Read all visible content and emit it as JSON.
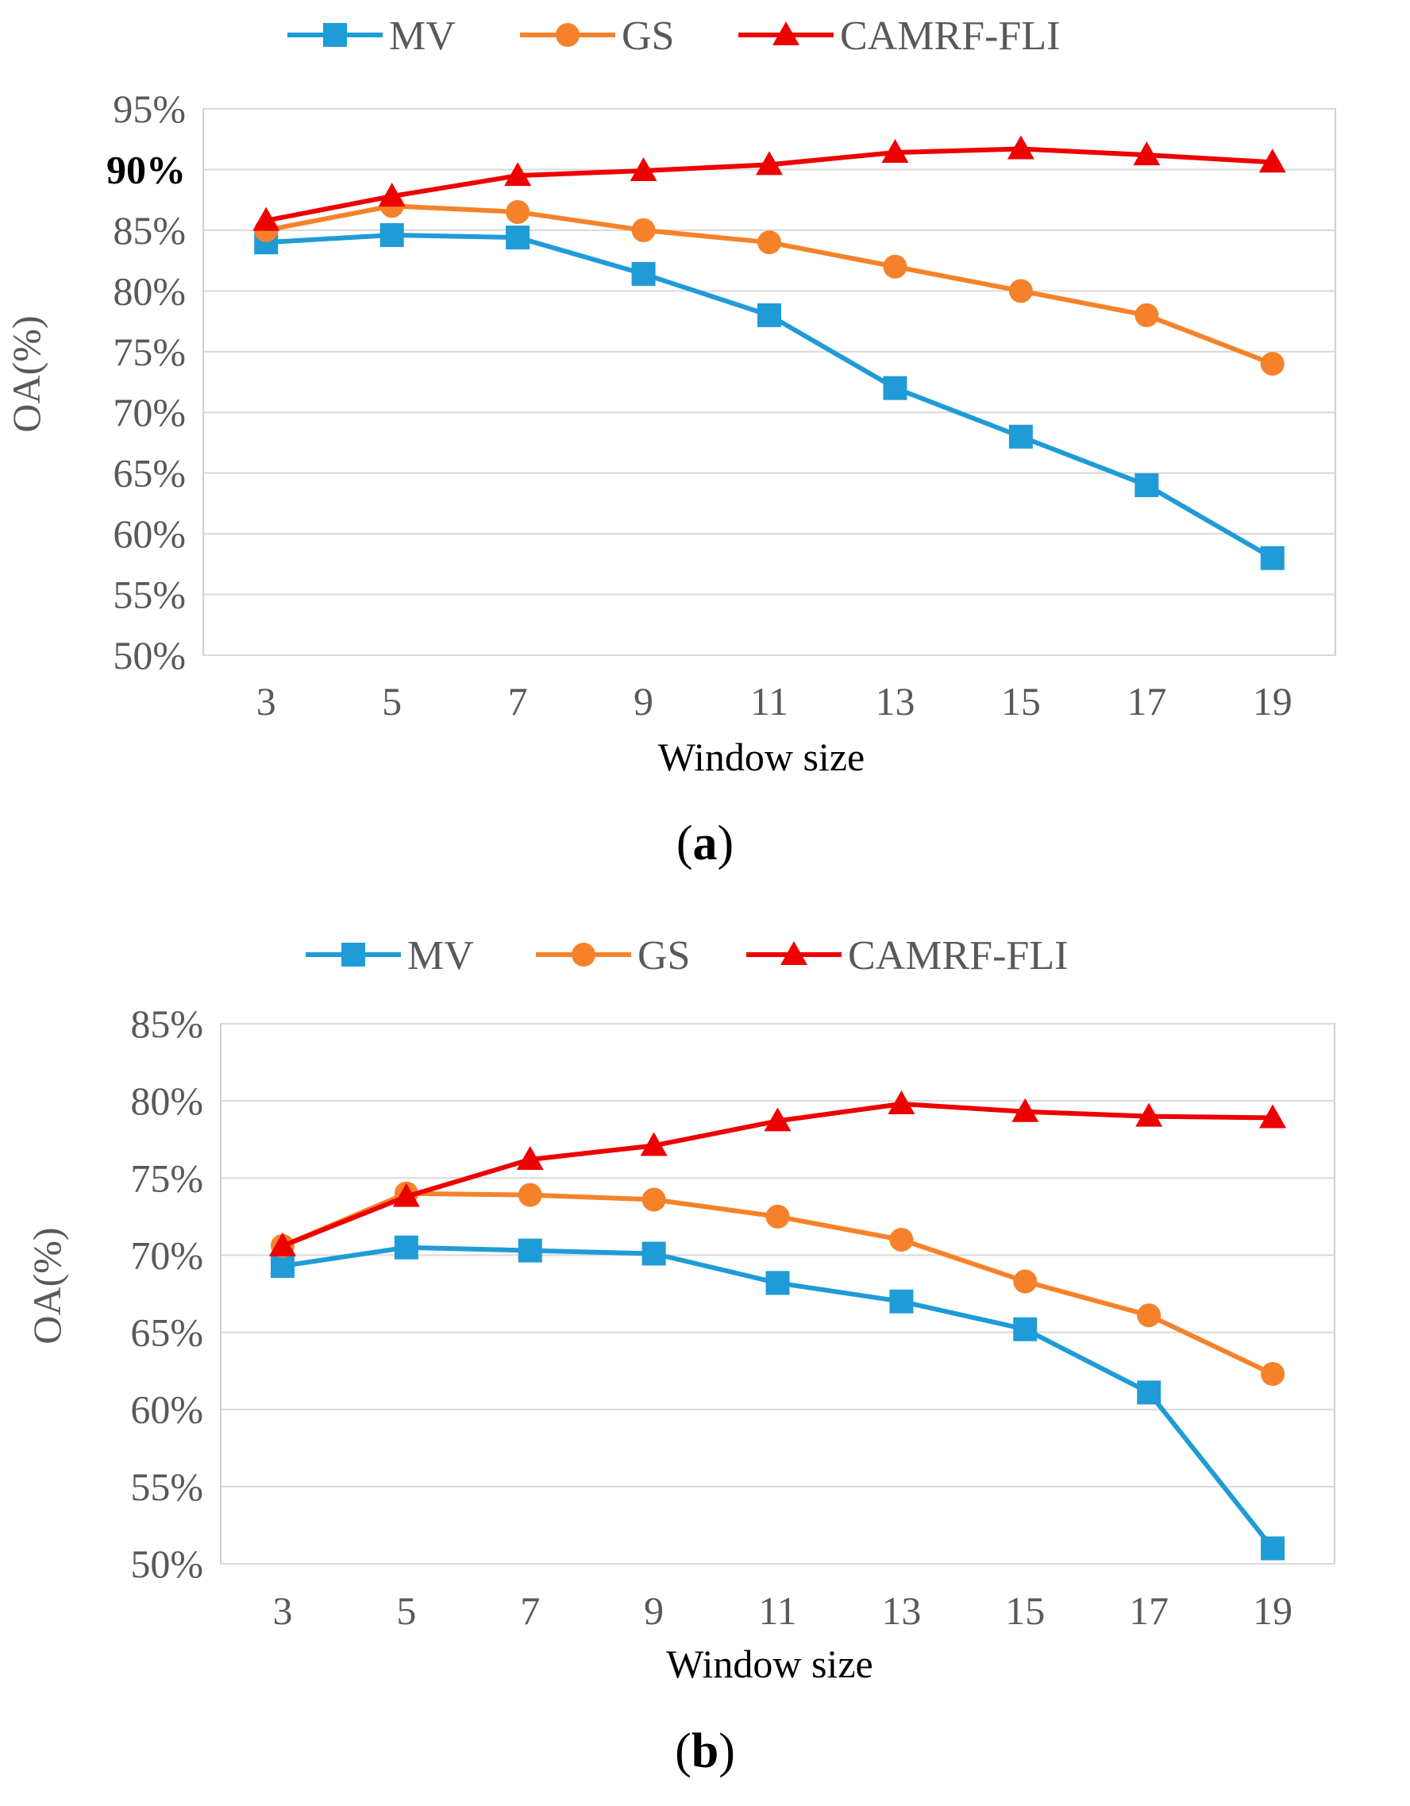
{
  "chart_data": [
    {
      "panel_label": "a",
      "type": "line",
      "title": "",
      "xlabel": "Window size",
      "ylabel": "OA(%)",
      "categories": [
        "3",
        "5",
        "7",
        "9",
        "11",
        "13",
        "15",
        "17",
        "19"
      ],
      "ylim": [
        50,
        95
      ],
      "yticks": [
        50,
        55,
        60,
        65,
        70,
        75,
        80,
        85,
        90,
        95
      ],
      "ytick_labels": [
        "50%",
        "55%",
        "60%",
        "65%",
        "70%",
        "75%",
        "80%",
        "85%",
        "90%",
        "95%"
      ],
      "bold_ytick": "90%",
      "grid": true,
      "legend_position": "top",
      "series": [
        {
          "name": "MV",
          "marker": "square",
          "color": "#1f9bd7",
          "values": [
            84.0,
            84.6,
            84.4,
            81.4,
            78.0,
            72.0,
            68.0,
            64.0,
            58.0
          ]
        },
        {
          "name": "GS",
          "marker": "circle",
          "color": "#f5822a",
          "values": [
            85.0,
            87.0,
            86.5,
            85.0,
            84.0,
            82.0,
            80.0,
            78.0,
            74.0
          ]
        },
        {
          "name": "CAMRF-FLI",
          "marker": "triangle",
          "color": "#ee0000",
          "values": [
            85.8,
            87.8,
            89.5,
            89.9,
            90.4,
            91.4,
            91.7,
            91.2,
            90.6
          ]
        }
      ]
    },
    {
      "panel_label": "b",
      "type": "line",
      "title": "",
      "xlabel": "Window size",
      "ylabel": "OA(%)",
      "categories": [
        "3",
        "5",
        "7",
        "9",
        "11",
        "13",
        "15",
        "17",
        "19"
      ],
      "ylim": [
        50,
        85
      ],
      "yticks": [
        50,
        55,
        60,
        65,
        70,
        75,
        80,
        85
      ],
      "ytick_labels": [
        "50%",
        "55%",
        "60%",
        "65%",
        "70%",
        "75%",
        "80%",
        "85%"
      ],
      "bold_ytick": "",
      "grid": true,
      "legend_position": "top",
      "series": [
        {
          "name": "MV",
          "marker": "square",
          "color": "#1f9bd7",
          "values": [
            69.3,
            70.5,
            70.3,
            70.1,
            68.2,
            67.0,
            65.2,
            61.1,
            51.0
          ]
        },
        {
          "name": "GS",
          "marker": "circle",
          "color": "#f5822a",
          "values": [
            70.6,
            74.0,
            73.9,
            73.6,
            72.5,
            71.0,
            68.3,
            66.1,
            62.3
          ]
        },
        {
          "name": "CAMRF-FLI",
          "marker": "triangle",
          "color": "#ee0000",
          "values": [
            70.6,
            73.8,
            76.2,
            77.1,
            78.7,
            79.8,
            79.3,
            79.0,
            78.9
          ]
        }
      ]
    }
  ]
}
